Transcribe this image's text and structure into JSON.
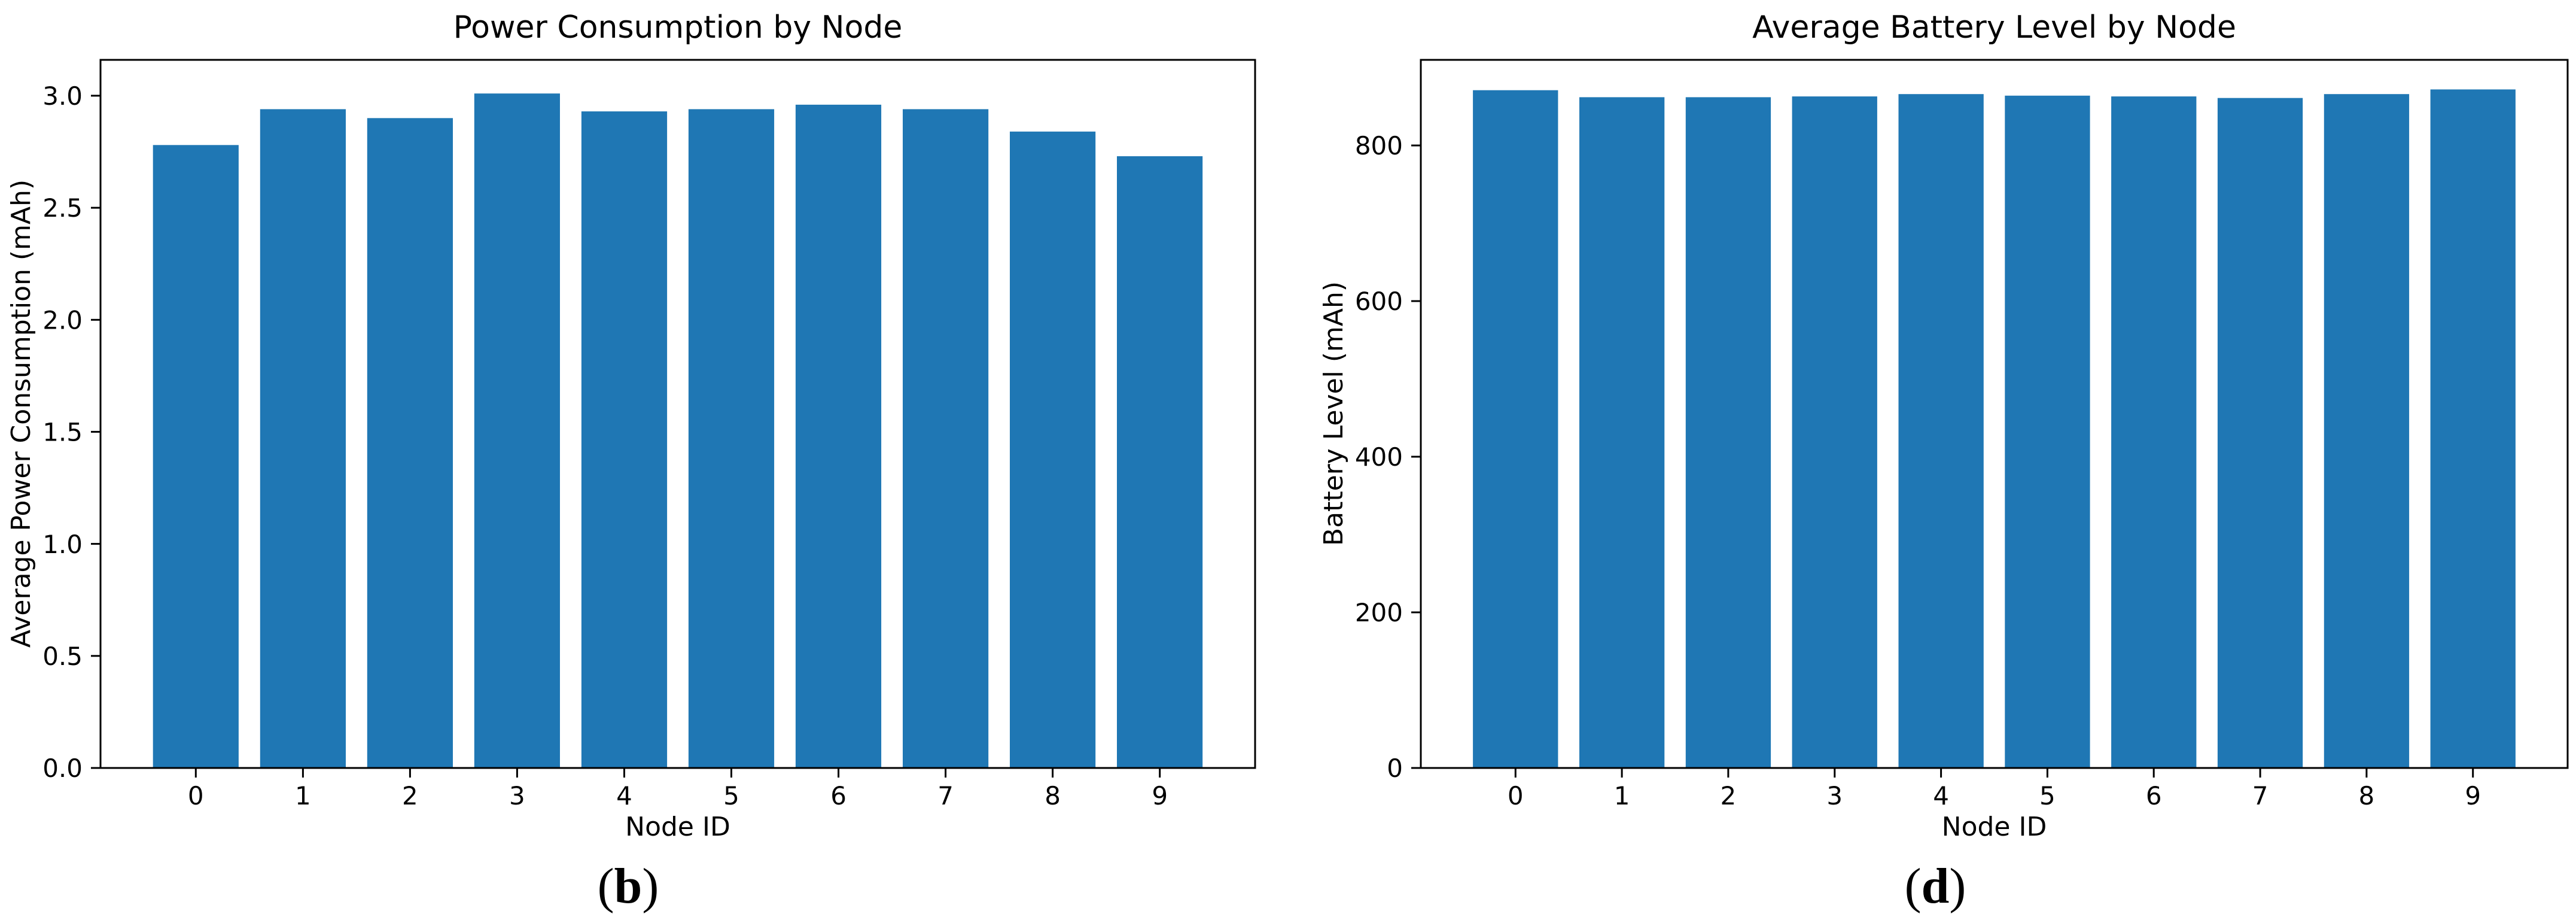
{
  "page": {
    "background": "#ffffff",
    "text_color": "#000000",
    "axis_color": "#000000"
  },
  "chart_data": [
    {
      "id": "power-consumption",
      "type": "bar",
      "title": "Power Consumption by Node",
      "xlabel": "Node ID",
      "ylabel": "Average Power Consumption (mAh)",
      "caption": "(b)",
      "caption_open": "(",
      "caption_letter": "b",
      "caption_close": ")",
      "categories": [
        "0",
        "1",
        "2",
        "3",
        "4",
        "5",
        "6",
        "7",
        "8",
        "9"
      ],
      "values": [
        2.78,
        2.94,
        2.9,
        3.01,
        2.93,
        2.94,
        2.96,
        2.94,
        2.84,
        2.73
      ],
      "bar_color": "#1f77b4",
      "bar_width": 0.8,
      "xlim": [
        -0.89,
        9.89
      ],
      "ylim": [
        0,
        3.16
      ],
      "yticks": [
        0.0,
        0.5,
        1.0,
        1.5,
        2.0,
        2.5,
        3.0
      ],
      "ytick_labels": [
        "0.0",
        "0.5",
        "1.0",
        "1.5",
        "2.0",
        "2.5",
        "3.0"
      ],
      "grid": false,
      "legend": null
    },
    {
      "id": "battery-level",
      "type": "bar",
      "title": "Average Battery Level by Node",
      "xlabel": "Node ID",
      "ylabel": "Battery Level (mAh)",
      "caption": "(d)",
      "caption_open": "(",
      "caption_letter": "d",
      "caption_close": ")",
      "categories": [
        "0",
        "1",
        "2",
        "3",
        "4",
        "5",
        "6",
        "7",
        "8",
        "9"
      ],
      "values": [
        871,
        862,
        862,
        863,
        866,
        864,
        863,
        861,
        866,
        872
      ],
      "bar_color": "#1f77b4",
      "bar_width": 0.8,
      "xlim": [
        -0.89,
        9.89
      ],
      "ylim": [
        0,
        910
      ],
      "yticks": [
        0,
        200,
        400,
        600,
        800
      ],
      "ytick_labels": [
        "0",
        "200",
        "400",
        "600",
        "800"
      ],
      "grid": false,
      "legend": null
    }
  ]
}
